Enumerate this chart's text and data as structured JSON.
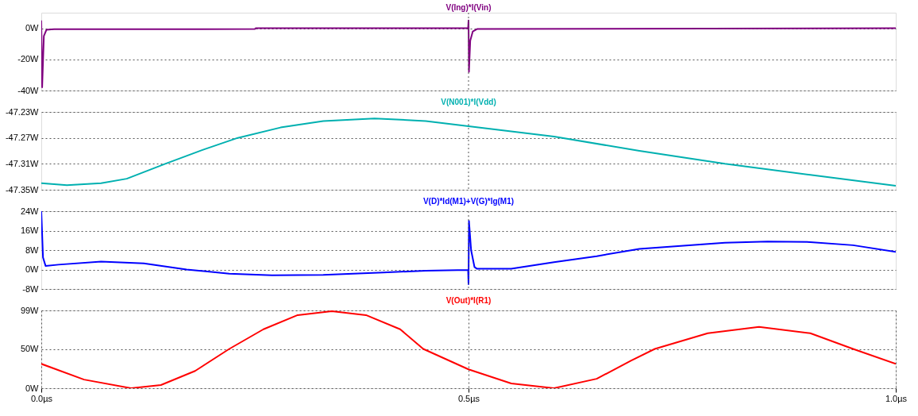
{
  "chart_data": [
    {
      "type": "line",
      "title": "V(Ing)*I(Vin)",
      "xlim": [
        0,
        1
      ],
      "ylim": [
        -40,
        10
      ],
      "yticks": [
        {
          "value": -40,
          "label": "-40W"
        },
        {
          "value": -20,
          "label": "-20W"
        },
        {
          "value": 0,
          "label": "0W"
        }
      ],
      "grid": "y",
      "tick_labels": "y",
      "line_style": "solid",
      "ref_lines": [
        {
          "axis": "x",
          "value": 0.5,
          "line_style": "dotted"
        }
      ],
      "x": [
        0,
        0.001,
        0.003,
        0.006,
        0.015,
        0.25,
        0.251,
        0.49,
        0.4995,
        0.5,
        0.5005,
        0.502,
        0.505,
        0.51,
        1.0
      ],
      "series": [
        {
          "color": "#800080",
          "values": [
            5,
            -38,
            -5,
            -1,
            -0.6,
            -0.5,
            0,
            0,
            0,
            5,
            -28,
            -8,
            -2,
            -0.5,
            0
          ]
        }
      ]
    },
    {
      "type": "line",
      "title": "V(N001)*I(Vdd)",
      "xlim": [
        0,
        1
      ],
      "ylim": [
        -47.35,
        -47.23
      ],
      "yticks": [
        {
          "value": -47.35,
          "label": "-47.35W"
        },
        {
          "value": -47.31,
          "label": "-47.31W"
        },
        {
          "value": -47.27,
          "label": "-47.27W"
        },
        {
          "value": -47.23,
          "label": "-47.23W"
        }
      ],
      "grid": "y",
      "tick_labels": "y",
      "line_style": "solid",
      "ref_lines": [
        {
          "axis": "x",
          "value": 0.5,
          "line_style": "dotted"
        }
      ],
      "x": [
        0,
        0.03,
        0.07,
        0.1,
        0.145,
        0.19,
        0.23,
        0.28,
        0.33,
        0.39,
        0.45,
        0.5,
        0.6,
        0.7,
        0.8,
        0.9,
        1.0
      ],
      "series": [
        {
          "color": "#00b0b0",
          "values": [
            -47.34,
            -47.343,
            -47.34,
            -47.333,
            -47.31,
            -47.288,
            -47.27,
            -47.254,
            -47.244,
            -47.24,
            -47.244,
            -47.252,
            -47.268,
            -47.29,
            -47.31,
            -47.327,
            -47.344
          ]
        }
      ]
    },
    {
      "type": "line",
      "title": "V(D)*Id(M1)+V(G)*Ig(M1)",
      "xlim": [
        0,
        1
      ],
      "ylim": [
        -8,
        24
      ],
      "yticks": [
        {
          "value": -8,
          "label": "-8W"
        },
        {
          "value": 0,
          "label": "0W"
        },
        {
          "value": 8,
          "label": "8W"
        },
        {
          "value": 16,
          "label": "16W"
        },
        {
          "value": 24,
          "label": "24W"
        }
      ],
      "grid": "y",
      "tick_labels": "y",
      "line_style": "solid",
      "ref_lines": [
        {
          "axis": "x",
          "value": 0.5,
          "line_style": "dotted"
        }
      ],
      "x": [
        0,
        0.002,
        0.005,
        0.02,
        0.07,
        0.12,
        0.17,
        0.22,
        0.27,
        0.33,
        0.4,
        0.45,
        0.4995,
        0.5,
        0.5005,
        0.503,
        0.507,
        0.51,
        0.55,
        0.6,
        0.65,
        0.7,
        0.8,
        0.85,
        0.9,
        0.95,
        1.0
      ],
      "series": [
        {
          "color": "#0000ff",
          "values": [
            24,
            5,
            1.5,
            2,
            3.3,
            2.5,
            0,
            -1.7,
            -2.4,
            -2.2,
            -1.2,
            -0.5,
            -0.2,
            -6,
            20,
            8,
            1,
            0.3,
            0.3,
            3,
            5.5,
            8.5,
            11,
            11.5,
            11.3,
            10,
            7.3
          ]
        }
      ]
    },
    {
      "type": "line",
      "title": "V(Out)*I(R1)",
      "xlim": [
        0,
        1
      ],
      "xticks": [
        {
          "value": 0,
          "label": "0.0µs"
        },
        {
          "value": 0.5,
          "label": "0.5µs"
        },
        {
          "value": 1,
          "label": "1.0µs"
        }
      ],
      "ylim": [
        0,
        99
      ],
      "yticks": [
        {
          "value": 0,
          "label": "0W"
        },
        {
          "value": 50,
          "label": "50W"
        },
        {
          "value": 99,
          "label": "99W"
        }
      ],
      "grid": true,
      "line_style": "solid",
      "x": [
        0,
        0.05,
        0.105,
        0.14,
        0.18,
        0.22,
        0.26,
        0.3,
        0.34,
        0.38,
        0.42,
        0.447,
        0.5,
        0.55,
        0.6,
        0.65,
        0.69,
        0.718,
        0.78,
        0.84,
        0.9,
        0.95,
        1.0
      ],
      "series": [
        {
          "color": "#ff0000",
          "values": [
            31,
            11,
            0,
            4,
            22,
            50,
            75,
            93,
            98,
            93,
            75,
            50,
            24,
            6,
            0,
            12,
            35,
            50,
            70,
            78,
            70,
            50,
            31
          ]
        }
      ]
    }
  ]
}
